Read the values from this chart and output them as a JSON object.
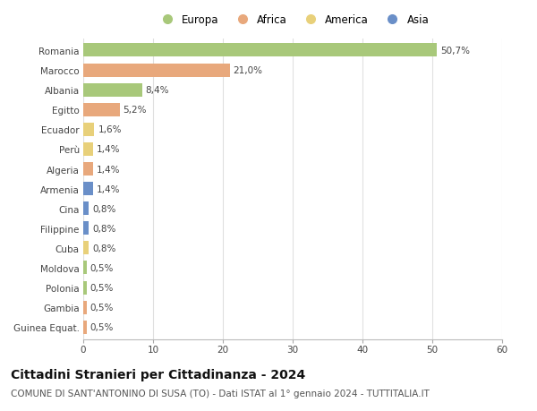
{
  "categories": [
    "Romania",
    "Marocco",
    "Albania",
    "Egitto",
    "Ecuador",
    "Perù",
    "Algeria",
    "Armenia",
    "Cina",
    "Filippine",
    "Cuba",
    "Moldova",
    "Polonia",
    "Gambia",
    "Guinea Equat."
  ],
  "values": [
    50.7,
    21.0,
    8.4,
    5.2,
    1.6,
    1.4,
    1.4,
    1.4,
    0.8,
    0.8,
    0.8,
    0.5,
    0.5,
    0.5,
    0.5
  ],
  "labels": [
    "50,7%",
    "21,0%",
    "8,4%",
    "5,2%",
    "1,6%",
    "1,4%",
    "1,4%",
    "1,4%",
    "0,8%",
    "0,8%",
    "0,8%",
    "0,5%",
    "0,5%",
    "0,5%",
    "0,5%"
  ],
  "continents": [
    "Europa",
    "Africa",
    "Europa",
    "Africa",
    "America",
    "America",
    "Africa",
    "Asia",
    "Asia",
    "Asia",
    "America",
    "Europa",
    "Europa",
    "Africa",
    "Africa"
  ],
  "continent_colors": {
    "Europa": "#a8c87a",
    "Africa": "#e8a87c",
    "America": "#e8d07a",
    "Asia": "#6a8fc8"
  },
  "legend_order": [
    "Europa",
    "Africa",
    "America",
    "Asia"
  ],
  "title": "Cittadini Stranieri per Cittadinanza - 2024",
  "subtitle": "COMUNE DI SANT'ANTONINO DI SUSA (TO) - Dati ISTAT al 1° gennaio 2024 - TUTTITALIA.IT",
  "xlim": [
    0,
    60
  ],
  "xticks": [
    0,
    10,
    20,
    30,
    40,
    50,
    60
  ],
  "background_color": "#ffffff",
  "grid_color": "#e0e0e0",
  "bar_height": 0.68,
  "title_fontsize": 10,
  "subtitle_fontsize": 7.5,
  "label_fontsize": 7.5,
  "tick_fontsize": 7.5,
  "legend_fontsize": 8.5
}
